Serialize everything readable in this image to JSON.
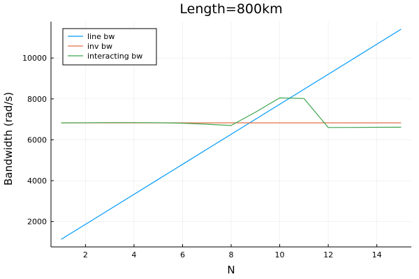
{
  "chart_data": {
    "type": "line",
    "title": "Length=800km",
    "xlabel": "N",
    "ylabel": "Bandwidth (rad/s)",
    "xlim": [
      0.58,
      15.42
    ],
    "ylim": [
      760,
      11780
    ],
    "xticks": [
      2,
      4,
      6,
      8,
      10,
      12,
      14
    ],
    "yticks": [
      2000,
      4000,
      6000,
      8000,
      10000
    ],
    "grid": true,
    "legend_position": "top-left",
    "x": [
      1,
      2,
      3,
      4,
      5,
      6,
      7,
      8,
      9,
      10,
      11,
      12,
      13,
      14,
      15
    ],
    "series": [
      {
        "name": "line bw",
        "color": "#009AFA",
        "values": [
          1130,
          1864,
          2598,
          3333,
          4067,
          4801,
          5535,
          6269,
          7003,
          7737,
          8471,
          9205,
          9939,
          10674,
          11408
        ]
      },
      {
        "name": "inv bw",
        "color": "#E26F46",
        "values": [
          6830,
          6830,
          6830,
          6830,
          6830,
          6830,
          6830,
          6830,
          6830,
          6830,
          6830,
          6830,
          6830,
          6830,
          6830
        ]
      },
      {
        "name": "interacting bw",
        "color": "#3DA44D",
        "values": [
          6830,
          6835,
          6840,
          6840,
          6835,
          6810,
          6760,
          6700,
          7350,
          8050,
          8020,
          6600,
          6605,
          6610,
          6615
        ]
      }
    ]
  }
}
